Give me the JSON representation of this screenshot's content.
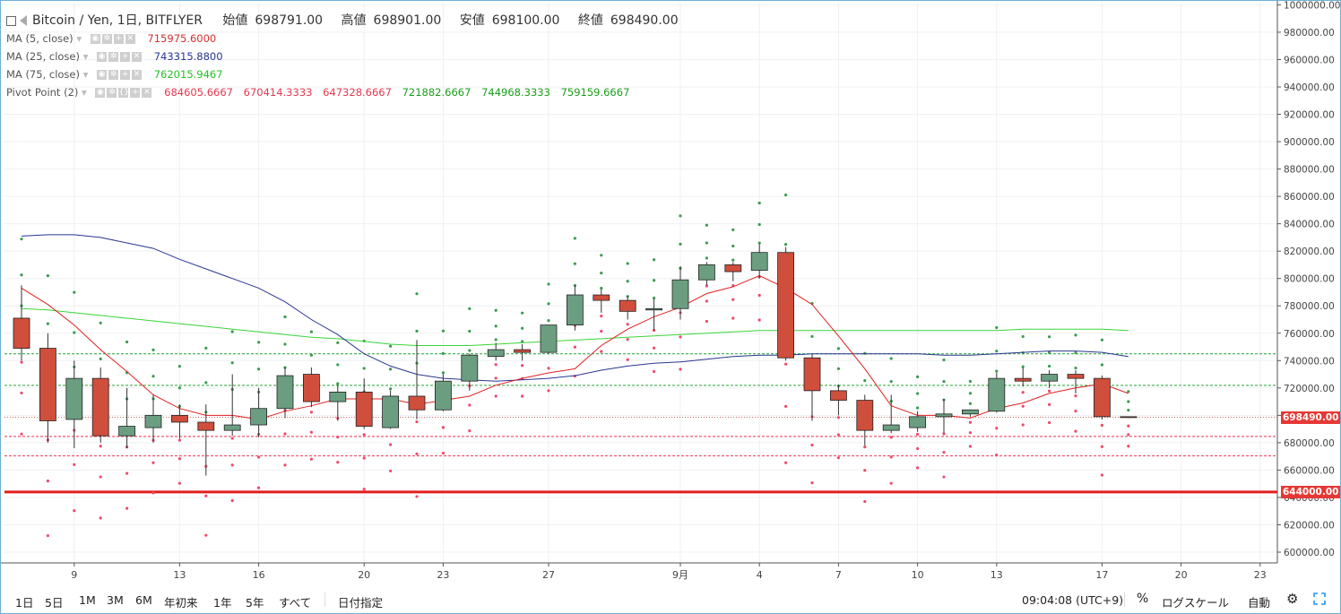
{
  "header": {
    "symbol": "Bitcoin / Yen, 1日, BITFLYER",
    "open_label": "始値",
    "open": "698791.00",
    "high_label": "高値",
    "high": "698901.00",
    "low_label": "安値",
    "low": "698100.00",
    "close_label": "終値",
    "close": "698490.00"
  },
  "indicators": [
    {
      "name": "MA (5, close)",
      "values": [
        "715975.6000"
      ],
      "color": "#d32f2f"
    },
    {
      "name": "MA (25, close)",
      "values": [
        "743315.8800"
      ],
      "color": "#283593"
    },
    {
      "name": "MA (75, close)",
      "values": [
        "762015.9467"
      ],
      "color": "#22c322"
    },
    {
      "name": "Pivot Point (2)",
      "values": [
        "684605.6667",
        "670414.3333",
        "647328.6667",
        "721882.6667",
        "744968.3333",
        "759159.6667"
      ],
      "colors": [
        "#e53950",
        "#e53950",
        "#e53950",
        "#1a9e1a",
        "#1a9e1a",
        "#1a9e1a"
      ]
    }
  ],
  "price_tags": {
    "last": "698490.00",
    "line": "644000.00"
  },
  "colors": {
    "up": "#6b9e80",
    "down": "#d04e3c",
    "ma5": "#e02020",
    "ma25": "#2a3590",
    "ma75": "#3ad43a",
    "pivot_up": "#3c9b4f",
    "pivot_down": "#ef4a6a"
  },
  "bottom_bar": {
    "ranges": [
      "1日",
      "5日",
      "1M",
      "3M",
      "6M",
      "年初来",
      "1年",
      "5年",
      "すべて"
    ],
    "date_button": "日付指定",
    "time": "09:04:08 (UTC+9)",
    "percent": "%",
    "log_scale": "ログスケール",
    "auto": "自動"
  },
  "chart_data": {
    "type": "candlestick",
    "yaxis": {
      "min": 590000,
      "max": 1000000,
      "ticks": [
        600000,
        620000,
        640000,
        660000,
        680000,
        700000,
        720000,
        740000,
        760000,
        780000,
        800000,
        820000,
        840000,
        860000,
        880000,
        900000,
        920000,
        940000,
        960000,
        980000,
        1000000
      ],
      "tick_labels": [
        "600000.00",
        "620000.00",
        "640000.00",
        "660000.00",
        "680000.00",
        "700000.00",
        "720000.00",
        "740000.00",
        "760000.00",
        "780000.00",
        "800000.00",
        "820000.00",
        "840000.00",
        "860000.00",
        "880000.00",
        "900000.00",
        "920000.00",
        "940000.00",
        "960000.00",
        "980000.00",
        "1000000.00"
      ]
    },
    "xaxis": {
      "ticks": [
        {
          "idx": 2,
          "label": "9"
        },
        {
          "idx": 6,
          "label": "13"
        },
        {
          "idx": 9,
          "label": "16"
        },
        {
          "idx": 13,
          "label": "20"
        },
        {
          "idx": 16,
          "label": "23"
        },
        {
          "idx": 20,
          "label": "27"
        },
        {
          "idx": 25,
          "label": "9月"
        },
        {
          "idx": 28,
          "label": "4"
        },
        {
          "idx": 31,
          "label": "7"
        },
        {
          "idx": 34,
          "label": "10"
        },
        {
          "idx": 37,
          "label": "13"
        },
        {
          "idx": 41,
          "label": "17"
        },
        {
          "idx": 44,
          "label": "20"
        },
        {
          "idx": 47,
          "label": "23"
        }
      ]
    },
    "candles": [
      {
        "o": 771000,
        "h": 795000,
        "l": 740000,
        "c": 749000
      },
      {
        "o": 749000,
        "h": 760000,
        "l": 680000,
        "c": 696000
      },
      {
        "o": 697000,
        "h": 740000,
        "l": 676000,
        "c": 727000
      },
      {
        "o": 727000,
        "h": 735000,
        "l": 680000,
        "c": 685000
      },
      {
        "o": 685000,
        "h": 720000,
        "l": 676000,
        "c": 692000
      },
      {
        "o": 691000,
        "h": 715000,
        "l": 680000,
        "c": 700000
      },
      {
        "o": 700000,
        "h": 708000,
        "l": 683000,
        "c": 695000
      },
      {
        "o": 695000,
        "h": 708000,
        "l": 656000,
        "c": 689000
      },
      {
        "o": 689000,
        "h": 730000,
        "l": 685000,
        "c": 693000
      },
      {
        "o": 693000,
        "h": 720000,
        "l": 684000,
        "c": 705000
      },
      {
        "o": 705000,
        "h": 735000,
        "l": 698000,
        "c": 729000
      },
      {
        "o": 730000,
        "h": 735000,
        "l": 706000,
        "c": 710000
      },
      {
        "o": 710000,
        "h": 722000,
        "l": 696000,
        "c": 717000
      },
      {
        "o": 717000,
        "h": 727000,
        "l": 690000,
        "c": 692000
      },
      {
        "o": 691000,
        "h": 718000,
        "l": 690000,
        "c": 714000
      },
      {
        "o": 714000,
        "h": 755000,
        "l": 697000,
        "c": 704000
      },
      {
        "o": 704000,
        "h": 730000,
        "l": 703000,
        "c": 725000
      },
      {
        "o": 725000,
        "h": 745000,
        "l": 718000,
        "c": 744000
      },
      {
        "o": 743000,
        "h": 753000,
        "l": 740000,
        "c": 748000
      },
      {
        "o": 748000,
        "h": 752000,
        "l": 740000,
        "c": 746000
      },
      {
        "o": 746000,
        "h": 766000,
        "l": 745000,
        "c": 766000
      },
      {
        "o": 766000,
        "h": 795000,
        "l": 762000,
        "c": 788000
      },
      {
        "o": 788000,
        "h": 792000,
        "l": 775000,
        "c": 784000
      },
      {
        "o": 784000,
        "h": 787000,
        "l": 770000,
        "c": 776000
      },
      {
        "o": 777000,
        "h": 785000,
        "l": 762000,
        "c": 778000
      },
      {
        "o": 778000,
        "h": 809000,
        "l": 770000,
        "c": 799000
      },
      {
        "o": 799000,
        "h": 812000,
        "l": 795000,
        "c": 810000
      },
      {
        "o": 810000,
        "h": 812000,
        "l": 798000,
        "c": 805000
      },
      {
        "o": 806000,
        "h": 825000,
        "l": 800000,
        "c": 819000
      },
      {
        "o": 819000,
        "h": 823000,
        "l": 740000,
        "c": 742000
      },
      {
        "o": 742000,
        "h": 745000,
        "l": 696000,
        "c": 718000
      },
      {
        "o": 718000,
        "h": 722000,
        "l": 700000,
        "c": 711000
      },
      {
        "o": 711000,
        "h": 715000,
        "l": 678000,
        "c": 689000
      },
      {
        "o": 689000,
        "h": 715000,
        "l": 687000,
        "c": 693000
      },
      {
        "o": 691000,
        "h": 703000,
        "l": 688000,
        "c": 699000
      },
      {
        "o": 699000,
        "h": 712000,
        "l": 687000,
        "c": 701000
      },
      {
        "o": 701000,
        "h": 704000,
        "l": 699000,
        "c": 704000
      },
      {
        "o": 703000,
        "h": 731000,
        "l": 702000,
        "c": 727000
      },
      {
        "o": 727000,
        "h": 735000,
        "l": 721000,
        "c": 725000
      },
      {
        "o": 725000,
        "h": 733000,
        "l": 720000,
        "c": 730000
      },
      {
        "o": 730000,
        "h": 733000,
        "l": 716000,
        "c": 727000
      },
      {
        "o": 727000,
        "h": 729000,
        "l": 697000,
        "c": 699000
      },
      {
        "o": 699000,
        "h": 699000,
        "l": 698000,
        "c": 698500
      }
    ],
    "ma5": [
      793000,
      781000,
      766000,
      748000,
      732000,
      715000,
      705000,
      700000,
      700000,
      697000,
      703000,
      707000,
      712000,
      712000,
      712000,
      708000,
      711000,
      714000,
      722000,
      727000,
      731000,
      734000,
      751000,
      763000,
      772000,
      779000,
      789000,
      794000,
      802000,
      793000,
      781000,
      758000,
      734000,
      707000,
      700000,
      700000,
      698000,
      705000,
      709000,
      716000,
      720000,
      723000,
      716000
    ],
    "ma25": [
      831000,
      832000,
      832000,
      830000,
      826000,
      822000,
      814000,
      807000,
      800000,
      793000,
      783000,
      770000,
      759000,
      745000,
      736000,
      730000,
      727000,
      726000,
      725000,
      726000,
      727000,
      729000,
      733000,
      736000,
      738000,
      739000,
      741000,
      743000,
      744000,
      744000,
      745000,
      745000,
      745000,
      745000,
      745000,
      744000,
      744000,
      745000,
      746000,
      747000,
      747000,
      746000,
      743000
    ],
    "ma75": [
      778000,
      777000,
      775000,
      773000,
      771000,
      769000,
      767000,
      765000,
      763000,
      761000,
      759000,
      757000,
      756000,
      754000,
      752000,
      751000,
      751000,
      751000,
      752000,
      753000,
      754000,
      755000,
      756000,
      757000,
      758000,
      759000,
      760000,
      761000,
      762000,
      762000,
      762000,
      762000,
      762000,
      762000,
      762000,
      762000,
      762000,
      762000,
      763000,
      763000,
      763000,
      763000,
      762000
    ],
    "pivot_levels": {
      "R1": 744968.3333,
      "P": 721882.6667,
      "S1": 684605.6667,
      "S2": 670414.3333,
      "last": 698490
    },
    "support_line": 644000
  }
}
